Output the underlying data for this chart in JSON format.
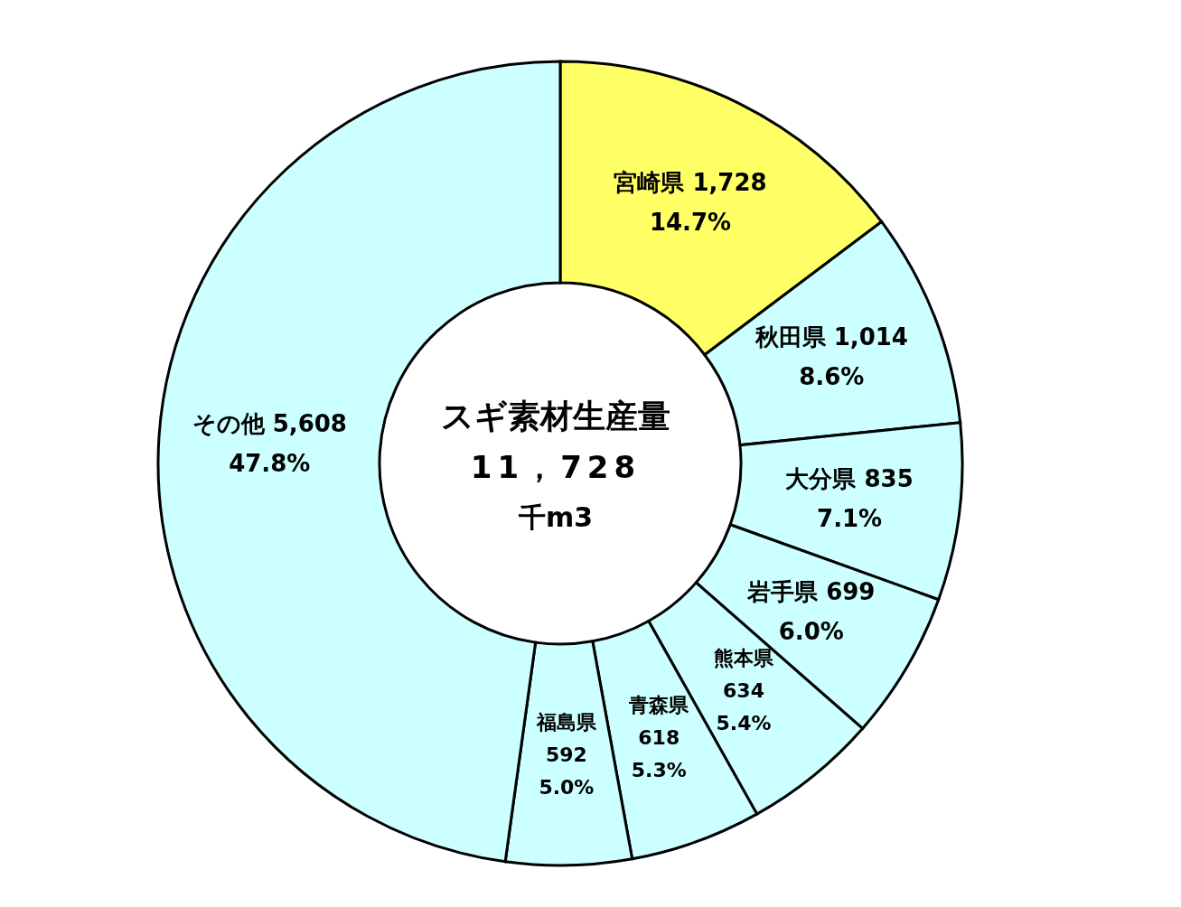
{
  "chart_data": {
    "type": "donut",
    "title": "スギ素材生産量",
    "annotations": [
      "11，728",
      "千m3"
    ],
    "categories": [
      "宮崎県",
      "秋田県",
      "大分県",
      "岩手県",
      "熊本県",
      "青森県",
      "福島県",
      "その他"
    ],
    "values": [
      1728,
      1014,
      835,
      699,
      634,
      618,
      592,
      5608
    ],
    "value_labels": [
      "1,728 14.7%",
      "1,014 8.6%",
      "835 7.1%",
      "699 6.0%",
      "634 5.4%",
      "618 5.3%",
      "592 5.0%",
      "5,608 47.8%"
    ],
    "colors": [
      "#ffff66",
      "#ccffff",
      "#ccffff",
      "#ccffff",
      "#ccffff",
      "#ccffff",
      "#ccffff",
      "#ccffff"
    ],
    "legend": false
  }
}
